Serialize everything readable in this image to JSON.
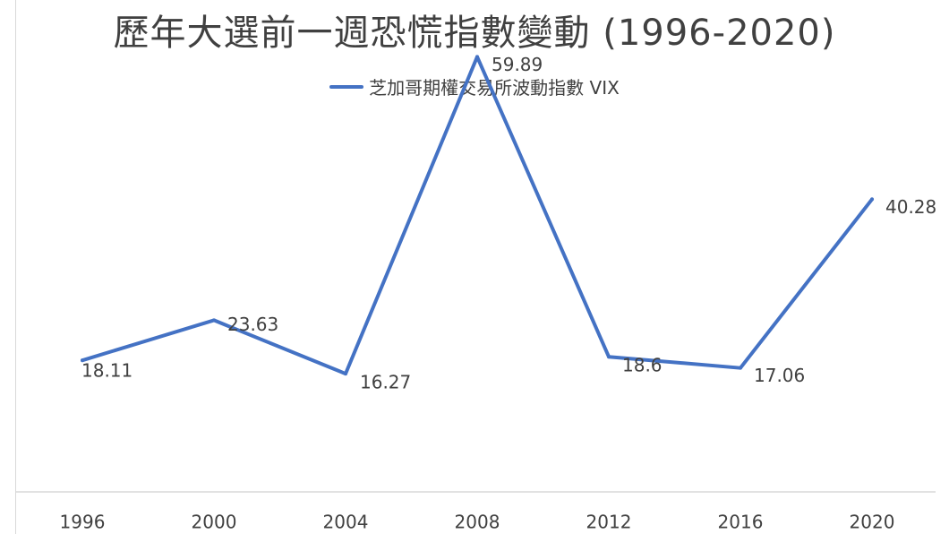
{
  "chart_data": {
    "type": "line",
    "title": "歷年大選前一週恐慌指數變動 (1996-2020)",
    "categories": [
      "1996",
      "2000",
      "2004",
      "2008",
      "2012",
      "2016",
      "2020"
    ],
    "series": [
      {
        "name": "芝加哥期權交易所波動指數 VIX",
        "values": [
          18.11,
          23.63,
          16.27,
          59.89,
          18.6,
          17.06,
          40.28
        ],
        "color": "#4472c4"
      }
    ],
    "data_labels": [
      "18.11",
      "23.63",
      "16.27",
      "59.89",
      "18.6",
      "17.06",
      "40.28"
    ],
    "ylim": [
      0,
      65
    ],
    "grid": false,
    "legend_position": "top",
    "xlabel": "",
    "ylabel": ""
  }
}
